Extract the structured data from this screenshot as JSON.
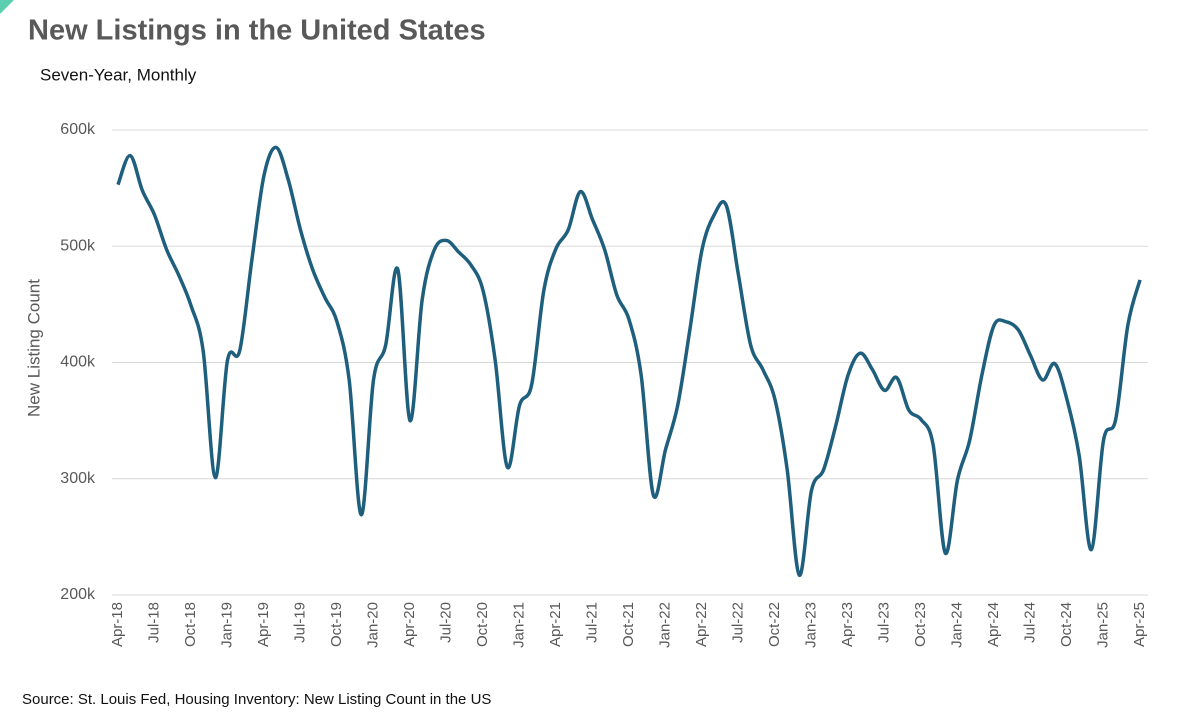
{
  "chart_data": {
    "type": "line",
    "title": "New Listings in the United States",
    "subtitle": "Seven-Year, Monthly",
    "y_label": "New Listing Count",
    "source": "Source: St. Louis Fed, Housing Inventory: New Listing Count in the US",
    "categories": [
      "Apr-18",
      null,
      null,
      "Jul-18",
      null,
      null,
      "Oct-18",
      null,
      null,
      "Jan-19",
      null,
      null,
      "Apr-19",
      null,
      null,
      "Jul-19",
      null,
      null,
      "Oct-19",
      null,
      null,
      "Jan-20",
      null,
      null,
      "Apr-20",
      null,
      null,
      "Jul-20",
      null,
      null,
      "Oct-20",
      null,
      null,
      "Jan-21",
      null,
      null,
      "Apr-21",
      null,
      null,
      "Jul-21",
      null,
      null,
      "Oct-21",
      null,
      null,
      "Jan-22",
      null,
      null,
      "Apr-22",
      null,
      null,
      "Jul-22",
      null,
      null,
      "Oct-22",
      null,
      null,
      "Jan-23",
      null,
      null,
      "Apr-23",
      null,
      null,
      "Jul-23",
      null,
      null,
      "Oct-23",
      null,
      null,
      "Jan-24",
      null,
      null,
      "Apr-24",
      null,
      null,
      "Jul-24",
      null,
      null,
      "Oct-24",
      null,
      null,
      "Jan-25",
      null,
      null,
      "Apr-25"
    ],
    "series": [
      {
        "name": "New Listing Count",
        "color": "#1f5f7e",
        "values": [
          553000,
          578000,
          548000,
          527000,
          497000,
          475000,
          449000,
          410000,
          301000,
          402000,
          410000,
          488000,
          561000,
          585000,
          557000,
          514000,
          480000,
          456000,
          435000,
          385000,
          269000,
          385000,
          415000,
          480000,
          350000,
          454000,
          497000,
          505000,
          495000,
          484000,
          462000,
          402000,
          310000,
          363000,
          381000,
          462000,
          498000,
          514000,
          547000,
          523000,
          497000,
          458000,
          437000,
          389000,
          286000,
          325000,
          363000,
          428000,
          497000,
          527000,
          535000,
          475000,
          415000,
          394000,
          368000,
          308000,
          217000,
          290000,
          308000,
          346000,
          389000,
          408000,
          394000,
          376000,
          387000,
          359000,
          351000,
          329000,
          236000,
          299000,
          333000,
          389000,
          432000,
          435000,
          428000,
          406000,
          385000,
          399000,
          368000,
          320000,
          239000,
          333000,
          351000,
          432000,
          471000
        ]
      }
    ],
    "ylim": [
      200000,
      600000
    ],
    "yticks": [
      {
        "value": 200000,
        "label": "200k"
      },
      {
        "value": 300000,
        "label": "300k"
      },
      {
        "value": 400000,
        "label": "400k"
      },
      {
        "value": 500000,
        "label": "500k"
      },
      {
        "value": 600000,
        "label": "600k"
      }
    ],
    "grid": true
  }
}
